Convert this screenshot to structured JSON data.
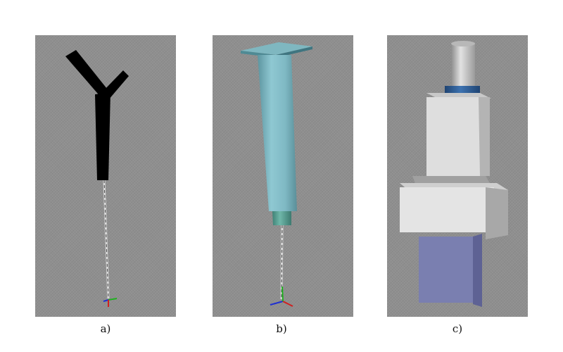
{
  "captions": {
    "a": "a)",
    "b": "b)",
    "c": "c)"
  },
  "panels": [
    {
      "id": "a",
      "icon": "y-shaped-pen-tool-icon",
      "background": "#8f8f8f"
    },
    {
      "id": "b",
      "icon": "syringe-tool-icon",
      "background": "#8f8f8f"
    },
    {
      "id": "c",
      "icon": "dispenser-head-icon",
      "background": "#8f8f8f"
    }
  ],
  "colors": {
    "tool_black": "#000000",
    "syringe_teal": "#7fb9c4",
    "nozzle_green": "#5fa79a",
    "head_light_gray": "#dcdcdc",
    "collar_blue": "#2f5f9a",
    "block_purple": "#7a7fb0",
    "axis_x": "#d02020",
    "axis_y": "#20b020",
    "axis_z": "#2030d0"
  }
}
